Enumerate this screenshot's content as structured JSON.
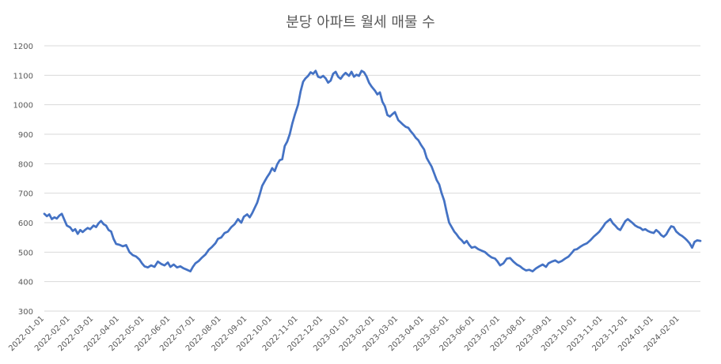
{
  "chart_data": {
    "type": "line",
    "title": "분당 아파트 월세 매물 수",
    "xlabel": "",
    "ylabel": "",
    "ylim": [
      300,
      1200
    ],
    "y_ticks": [
      "300",
      "400",
      "500",
      "600",
      "700",
      "800",
      "900",
      "1000",
      "1100",
      "1200"
    ],
    "grid": true,
    "legend": "none",
    "line_color": "#4472C4",
    "x_ticks": [
      "2022-01-01",
      "2022-02-01",
      "2022-03-01",
      "2022-04-01",
      "2022-05-01",
      "2022-06-01",
      "2022-07-01",
      "2022-08-01",
      "2022-09-01",
      "2022-10-01",
      "2022-11-01",
      "2022-12-01",
      "2023-01-01",
      "2023-02-01",
      "2023-03-01",
      "2023-04-01",
      "2023-05-01",
      "2023-06-01",
      "2023-07-01",
      "2023-08-01",
      "2023-09-01",
      "2023-10-01",
      "2023-11-01",
      "2023-12-01",
      "2024-01-01",
      "2024-02-01"
    ],
    "series": [
      {
        "points": [
          [
            "2022-01-01",
            630
          ],
          [
            "2022-01-04",
            622
          ],
          [
            "2022-01-07",
            628
          ],
          [
            "2022-01-10",
            612
          ],
          [
            "2022-01-13",
            618
          ],
          [
            "2022-01-16",
            614
          ],
          [
            "2022-01-19",
            624
          ],
          [
            "2022-01-22",
            630
          ],
          [
            "2022-01-25",
            610
          ],
          [
            "2022-01-28",
            590
          ],
          [
            "2022-02-01",
            584
          ],
          [
            "2022-02-04",
            572
          ],
          [
            "2022-02-07",
            578
          ],
          [
            "2022-02-10",
            562
          ],
          [
            "2022-02-13",
            575
          ],
          [
            "2022-02-16",
            568
          ],
          [
            "2022-02-19",
            576
          ],
          [
            "2022-02-22",
            582
          ],
          [
            "2022-02-25",
            578
          ],
          [
            "2022-03-01",
            590
          ],
          [
            "2022-03-04",
            585
          ],
          [
            "2022-03-07",
            598
          ],
          [
            "2022-03-10",
            606
          ],
          [
            "2022-03-13",
            595
          ],
          [
            "2022-03-16",
            590
          ],
          [
            "2022-03-19",
            575
          ],
          [
            "2022-03-22",
            570
          ],
          [
            "2022-03-25",
            545
          ],
          [
            "2022-03-28",
            528
          ],
          [
            "2022-04-01",
            525
          ],
          [
            "2022-04-05",
            520
          ],
          [
            "2022-04-09",
            524
          ],
          [
            "2022-04-13",
            500
          ],
          [
            "2022-04-17",
            490
          ],
          [
            "2022-04-21",
            485
          ],
          [
            "2022-04-25",
            475
          ],
          [
            "2022-04-28",
            462
          ],
          [
            "2022-05-01",
            452
          ],
          [
            "2022-05-05",
            448
          ],
          [
            "2022-05-09",
            455
          ],
          [
            "2022-05-13",
            450
          ],
          [
            "2022-05-17",
            468
          ],
          [
            "2022-05-21",
            460
          ],
          [
            "2022-05-25",
            455
          ],
          [
            "2022-05-29",
            465
          ],
          [
            "2022-06-01",
            450
          ],
          [
            "2022-06-05",
            458
          ],
          [
            "2022-06-09",
            448
          ],
          [
            "2022-06-13",
            452
          ],
          [
            "2022-06-17",
            445
          ],
          [
            "2022-06-21",
            440
          ],
          [
            "2022-06-25",
            435
          ],
          [
            "2022-06-28",
            450
          ],
          [
            "2022-07-01",
            462
          ],
          [
            "2022-07-05",
            470
          ],
          [
            "2022-07-09",
            482
          ],
          [
            "2022-07-13",
            492
          ],
          [
            "2022-07-17",
            508
          ],
          [
            "2022-07-21",
            518
          ],
          [
            "2022-07-25",
            530
          ],
          [
            "2022-07-28",
            545
          ],
          [
            "2022-08-01",
            550
          ],
          [
            "2022-08-05",
            565
          ],
          [
            "2022-08-09",
            570
          ],
          [
            "2022-08-13",
            585
          ],
          [
            "2022-08-17",
            595
          ],
          [
            "2022-08-21",
            612
          ],
          [
            "2022-08-25",
            600
          ],
          [
            "2022-08-28",
            620
          ],
          [
            "2022-09-01",
            628
          ],
          [
            "2022-09-04",
            618
          ],
          [
            "2022-09-07",
            632
          ],
          [
            "2022-09-10",
            650
          ],
          [
            "2022-09-13",
            668
          ],
          [
            "2022-09-16",
            695
          ],
          [
            "2022-09-19",
            725
          ],
          [
            "2022-09-22",
            740
          ],
          [
            "2022-09-25",
            755
          ],
          [
            "2022-09-28",
            768
          ],
          [
            "2022-10-01",
            785
          ],
          [
            "2022-10-04",
            775
          ],
          [
            "2022-10-07",
            798
          ],
          [
            "2022-10-10",
            812
          ],
          [
            "2022-10-13",
            815
          ],
          [
            "2022-10-16",
            860
          ],
          [
            "2022-10-19",
            875
          ],
          [
            "2022-10-22",
            900
          ],
          [
            "2022-10-25",
            935
          ],
          [
            "2022-10-28",
            965
          ],
          [
            "2022-11-01",
            1000
          ],
          [
            "2022-11-04",
            1045
          ],
          [
            "2022-11-07",
            1078
          ],
          [
            "2022-11-10",
            1090
          ],
          [
            "2022-11-13",
            1098
          ],
          [
            "2022-11-16",
            1110
          ],
          [
            "2022-11-19",
            1105
          ],
          [
            "2022-11-22",
            1115
          ],
          [
            "2022-11-25",
            1095
          ],
          [
            "2022-11-28",
            1092
          ],
          [
            "2022-12-01",
            1098
          ],
          [
            "2022-12-04",
            1090
          ],
          [
            "2022-12-07",
            1075
          ],
          [
            "2022-12-10",
            1082
          ],
          [
            "2022-12-13",
            1105
          ],
          [
            "2022-12-16",
            1112
          ],
          [
            "2022-12-19",
            1095
          ],
          [
            "2022-12-22",
            1088
          ],
          [
            "2022-12-25",
            1100
          ],
          [
            "2022-12-28",
            1108
          ],
          [
            "2023-01-01",
            1098
          ],
          [
            "2023-01-04",
            1112
          ],
          [
            "2023-01-07",
            1095
          ],
          [
            "2023-01-10",
            1102
          ],
          [
            "2023-01-13",
            1098
          ],
          [
            "2023-01-16",
            1115
          ],
          [
            "2023-01-19",
            1110
          ],
          [
            "2023-01-22",
            1096
          ],
          [
            "2023-01-25",
            1075
          ],
          [
            "2023-01-28",
            1062
          ],
          [
            "2023-02-01",
            1048
          ],
          [
            "2023-02-04",
            1035
          ],
          [
            "2023-02-07",
            1042
          ],
          [
            "2023-02-10",
            1010
          ],
          [
            "2023-02-13",
            995
          ],
          [
            "2023-02-16",
            965
          ],
          [
            "2023-02-19",
            960
          ],
          [
            "2023-02-22",
            968
          ],
          [
            "2023-02-25",
            975
          ],
          [
            "2023-02-28",
            955
          ],
          [
            "2023-03-01",
            948
          ],
          [
            "2023-03-04",
            940
          ],
          [
            "2023-03-07",
            932
          ],
          [
            "2023-03-10",
            925
          ],
          [
            "2023-03-13",
            922
          ],
          [
            "2023-03-16",
            910
          ],
          [
            "2023-03-19",
            900
          ],
          [
            "2023-03-22",
            888
          ],
          [
            "2023-03-25",
            880
          ],
          [
            "2023-03-28",
            865
          ],
          [
            "2023-04-01",
            848
          ],
          [
            "2023-04-04",
            820
          ],
          [
            "2023-04-07",
            805
          ],
          [
            "2023-04-10",
            790
          ],
          [
            "2023-04-13",
            768
          ],
          [
            "2023-04-16",
            745
          ],
          [
            "2023-04-19",
            730
          ],
          [
            "2023-04-22",
            700
          ],
          [
            "2023-04-25",
            675
          ],
          [
            "2023-04-28",
            635
          ],
          [
            "2023-05-01",
            600
          ],
          [
            "2023-05-04",
            585
          ],
          [
            "2023-05-07",
            570
          ],
          [
            "2023-05-10",
            560
          ],
          [
            "2023-05-13",
            548
          ],
          [
            "2023-05-16",
            540
          ],
          [
            "2023-05-19",
            530
          ],
          [
            "2023-05-22",
            538
          ],
          [
            "2023-05-25",
            525
          ],
          [
            "2023-05-28",
            515
          ],
          [
            "2023-06-01",
            518
          ],
          [
            "2023-06-05",
            510
          ],
          [
            "2023-06-09",
            505
          ],
          [
            "2023-06-13",
            500
          ],
          [
            "2023-06-17",
            490
          ],
          [
            "2023-06-21",
            482
          ],
          [
            "2023-06-25",
            478
          ],
          [
            "2023-06-28",
            468
          ],
          [
            "2023-07-01",
            455
          ],
          [
            "2023-07-05",
            462
          ],
          [
            "2023-07-09",
            478
          ],
          [
            "2023-07-13",
            480
          ],
          [
            "2023-07-17",
            468
          ],
          [
            "2023-07-21",
            458
          ],
          [
            "2023-07-25",
            452
          ],
          [
            "2023-07-28",
            445
          ],
          [
            "2023-08-01",
            438
          ],
          [
            "2023-08-05",
            440
          ],
          [
            "2023-08-09",
            435
          ],
          [
            "2023-08-13",
            445
          ],
          [
            "2023-08-17",
            452
          ],
          [
            "2023-08-21",
            458
          ],
          [
            "2023-08-25",
            450
          ],
          [
            "2023-08-28",
            462
          ],
          [
            "2023-09-01",
            468
          ],
          [
            "2023-09-05",
            472
          ],
          [
            "2023-09-09",
            465
          ],
          [
            "2023-09-13",
            470
          ],
          [
            "2023-09-17",
            478
          ],
          [
            "2023-09-21",
            485
          ],
          [
            "2023-09-25",
            498
          ],
          [
            "2023-09-28",
            508
          ],
          [
            "2023-10-01",
            510
          ],
          [
            "2023-10-05",
            518
          ],
          [
            "2023-10-09",
            525
          ],
          [
            "2023-10-13",
            530
          ],
          [
            "2023-10-17",
            540
          ],
          [
            "2023-10-21",
            552
          ],
          [
            "2023-10-25",
            562
          ],
          [
            "2023-10-28",
            570
          ],
          [
            "2023-11-01",
            585
          ],
          [
            "2023-11-04",
            598
          ],
          [
            "2023-11-07",
            605
          ],
          [
            "2023-11-10",
            612
          ],
          [
            "2023-11-13",
            598
          ],
          [
            "2023-11-16",
            590
          ],
          [
            "2023-11-19",
            580
          ],
          [
            "2023-11-22",
            575
          ],
          [
            "2023-11-25",
            590
          ],
          [
            "2023-11-28",
            605
          ],
          [
            "2023-12-01",
            612
          ],
          [
            "2023-12-04",
            605
          ],
          [
            "2023-12-07",
            598
          ],
          [
            "2023-12-10",
            590
          ],
          [
            "2023-12-13",
            585
          ],
          [
            "2023-12-16",
            582
          ],
          [
            "2023-12-19",
            575
          ],
          [
            "2023-12-22",
            578
          ],
          [
            "2023-12-25",
            572
          ],
          [
            "2023-12-28",
            568
          ],
          [
            "2024-01-01",
            565
          ],
          [
            "2024-01-04",
            575
          ],
          [
            "2024-01-07",
            568
          ],
          [
            "2024-01-10",
            558
          ],
          [
            "2024-01-13",
            552
          ],
          [
            "2024-01-16",
            560
          ],
          [
            "2024-01-19",
            575
          ],
          [
            "2024-01-22",
            588
          ],
          [
            "2024-01-25",
            585
          ],
          [
            "2024-01-28",
            570
          ],
          [
            "2024-02-01",
            560
          ],
          [
            "2024-02-04",
            555
          ],
          [
            "2024-02-07",
            548
          ],
          [
            "2024-02-10",
            540
          ],
          [
            "2024-02-13",
            530
          ],
          [
            "2024-02-16",
            515
          ],
          [
            "2024-02-19",
            535
          ],
          [
            "2024-02-22",
            540
          ],
          [
            "2024-02-26",
            538
          ]
        ]
      }
    ]
  }
}
